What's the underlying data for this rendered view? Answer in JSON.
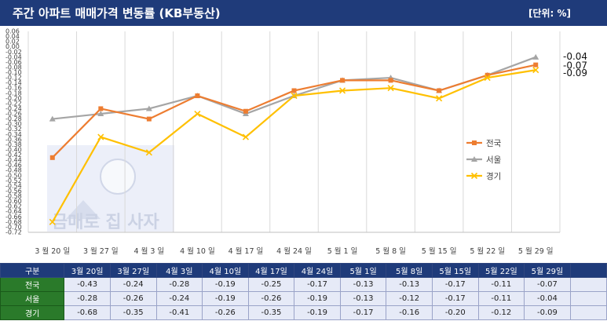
{
  "header": {
    "title": "주간 아파트 매매가격 변동률 (KB부동산)",
    "unit": "[단위: %]"
  },
  "watermark": {
    "text": "금매로 집 사자"
  },
  "table": {
    "header_label": "구분"
  },
  "colors": {
    "national": "#ed7d31",
    "seoul": "#a5a5a5",
    "gyeonggi": "#ffc000",
    "title_bg": "#1f3b7a",
    "row_label_bg": "#2a7a2a"
  },
  "chart_data": {
    "type": "line",
    "title": "주간 아파트 매매가격 변동률 (KB부동산)",
    "categories": [
      "3월 20일",
      "3월 27일",
      "4월 3일",
      "4월 10일",
      "4월 17일",
      "4월 24일",
      "5월 1일",
      "5월 8일",
      "5월 15일",
      "5월 22일",
      "5월 29일"
    ],
    "series": [
      {
        "name": "전국",
        "values": [
          -0.43,
          -0.24,
          -0.28,
          -0.19,
          -0.25,
          -0.17,
          -0.13,
          -0.13,
          -0.17,
          -0.11,
          -0.07
        ],
        "end_label": "-0.07"
      },
      {
        "name": "서울",
        "values": [
          -0.28,
          -0.26,
          -0.24,
          -0.19,
          -0.26,
          -0.19,
          -0.13,
          -0.12,
          -0.17,
          -0.11,
          -0.04
        ],
        "end_label": "-0.04"
      },
      {
        "name": "경기",
        "values": [
          -0.68,
          -0.35,
          -0.41,
          -0.26,
          -0.35,
          -0.19,
          -0.17,
          -0.16,
          -0.2,
          -0.12,
          -0.09
        ],
        "end_label": "-0.09"
      }
    ],
    "ylim": [
      -0.72,
      0.06
    ],
    "y_ticks": [
      "0.06",
      "0.04",
      "0.02",
      "0.00",
      "-0.02",
      "-0.04",
      "-0.06",
      "-0.08",
      "-0.10",
      "-0.12",
      "-0.14",
      "-0.16",
      "-0.18",
      "-0.20",
      "-0.22",
      "-0.24",
      "-0.26",
      "-0.28",
      "-0.30",
      "-0.32",
      "-0.34",
      "-0.36",
      "-0.38",
      "-0.40",
      "-0.42",
      "-0.44",
      "-0.46",
      "-0.48",
      "-0.50",
      "-0.52",
      "-0.54",
      "-0.56",
      "-0.58",
      "-0.60",
      "-0.62",
      "-0.64",
      "-0.66",
      "-0.68",
      "-0.70",
      "-0.72"
    ],
    "x_tick_labels": [
      "3 월 20 일",
      "3 월 27 일",
      "4 월 3 일",
      "4 월 10 일",
      "4 월 17 일",
      "4 월 24 일",
      "5 월 1 일",
      "5 월 8 일",
      "5 월 15 일",
      "5 월 22 일",
      "5 월 29 일"
    ],
    "table_rows": [
      {
        "label": "전국",
        "values": [
          "-0.43",
          "-0.24",
          "-0.28",
          "-0.19",
          "-0.25",
          "-0.17",
          "-0.13",
          "-0.13",
          "-0.17",
          "-0.11",
          "-0.07"
        ]
      },
      {
        "label": "서울",
        "values": [
          "-0.28",
          "-0.26",
          "-0.24",
          "-0.19",
          "-0.26",
          "-0.19",
          "-0.13",
          "-0.12",
          "-0.17",
          "-0.11",
          "-0.04"
        ]
      },
      {
        "label": "경기",
        "values": [
          "-0.68",
          "-0.35",
          "-0.41",
          "-0.26",
          "-0.35",
          "-0.19",
          "-0.17",
          "-0.16",
          "-0.20",
          "-0.12",
          "-0.09"
        ]
      }
    ],
    "legend_position": "right",
    "grid": true
  }
}
